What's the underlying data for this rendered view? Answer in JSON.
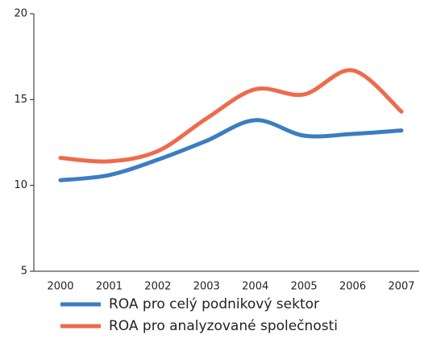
{
  "chart_data": {
    "type": "line",
    "categories": [
      "2000",
      "2001",
      "2002",
      "2003",
      "2004",
      "2005",
      "2006",
      "2007"
    ],
    "series": [
      {
        "name": "ROA pro celý podnikový sektor",
        "color": "#3b7dc2",
        "values": [
          10.3,
          10.6,
          11.5,
          12.6,
          13.8,
          12.9,
          13.0,
          13.2
        ]
      },
      {
        "name": "ROA pro analyzované společnosti",
        "color": "#ef6a4b",
        "values": [
          11.6,
          11.4,
          12.0,
          13.9,
          15.6,
          15.3,
          16.7,
          14.3
        ]
      }
    ],
    "ylim": [
      5,
      20
    ],
    "yticks": [
      5,
      10,
      15,
      20
    ],
    "smooth": true
  }
}
